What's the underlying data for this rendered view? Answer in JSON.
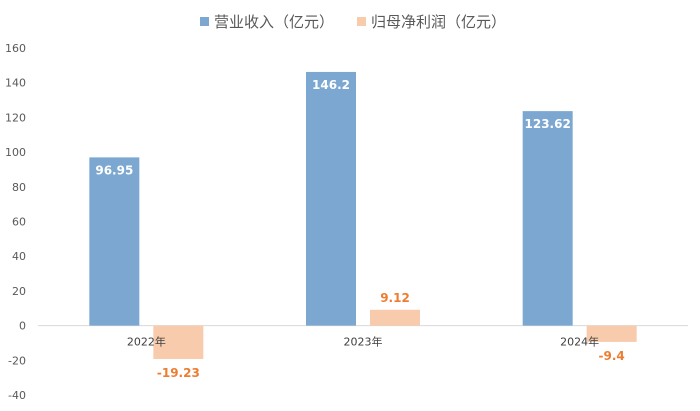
{
  "chart_data": {
    "type": "bar",
    "categories": [
      "2022年",
      "2023年",
      "2024年"
    ],
    "series": [
      {
        "name": "营业收入（亿元）",
        "values": [
          96.95,
          146.2,
          123.62
        ],
        "color": "#7BA7D1",
        "label_color": "#ffffff"
      },
      {
        "name": "归母净利润（亿元）",
        "values": [
          -19.23,
          9.12,
          -9.4
        ],
        "color": "#F8CBAD",
        "label_color": "#ED7D31"
      }
    ],
    "data_labels": [
      [
        "96.95",
        "146.2",
        "123.62"
      ],
      [
        "-19.23",
        "9.12",
        "-9.4"
      ]
    ],
    "yticks": [
      -40,
      -20,
      0,
      20,
      40,
      60,
      80,
      100,
      120,
      140,
      160
    ],
    "ylim": [
      -40,
      160
    ],
    "grid": false,
    "legend_position": "top",
    "title": "",
    "xlabel": "",
    "ylabel": ""
  }
}
